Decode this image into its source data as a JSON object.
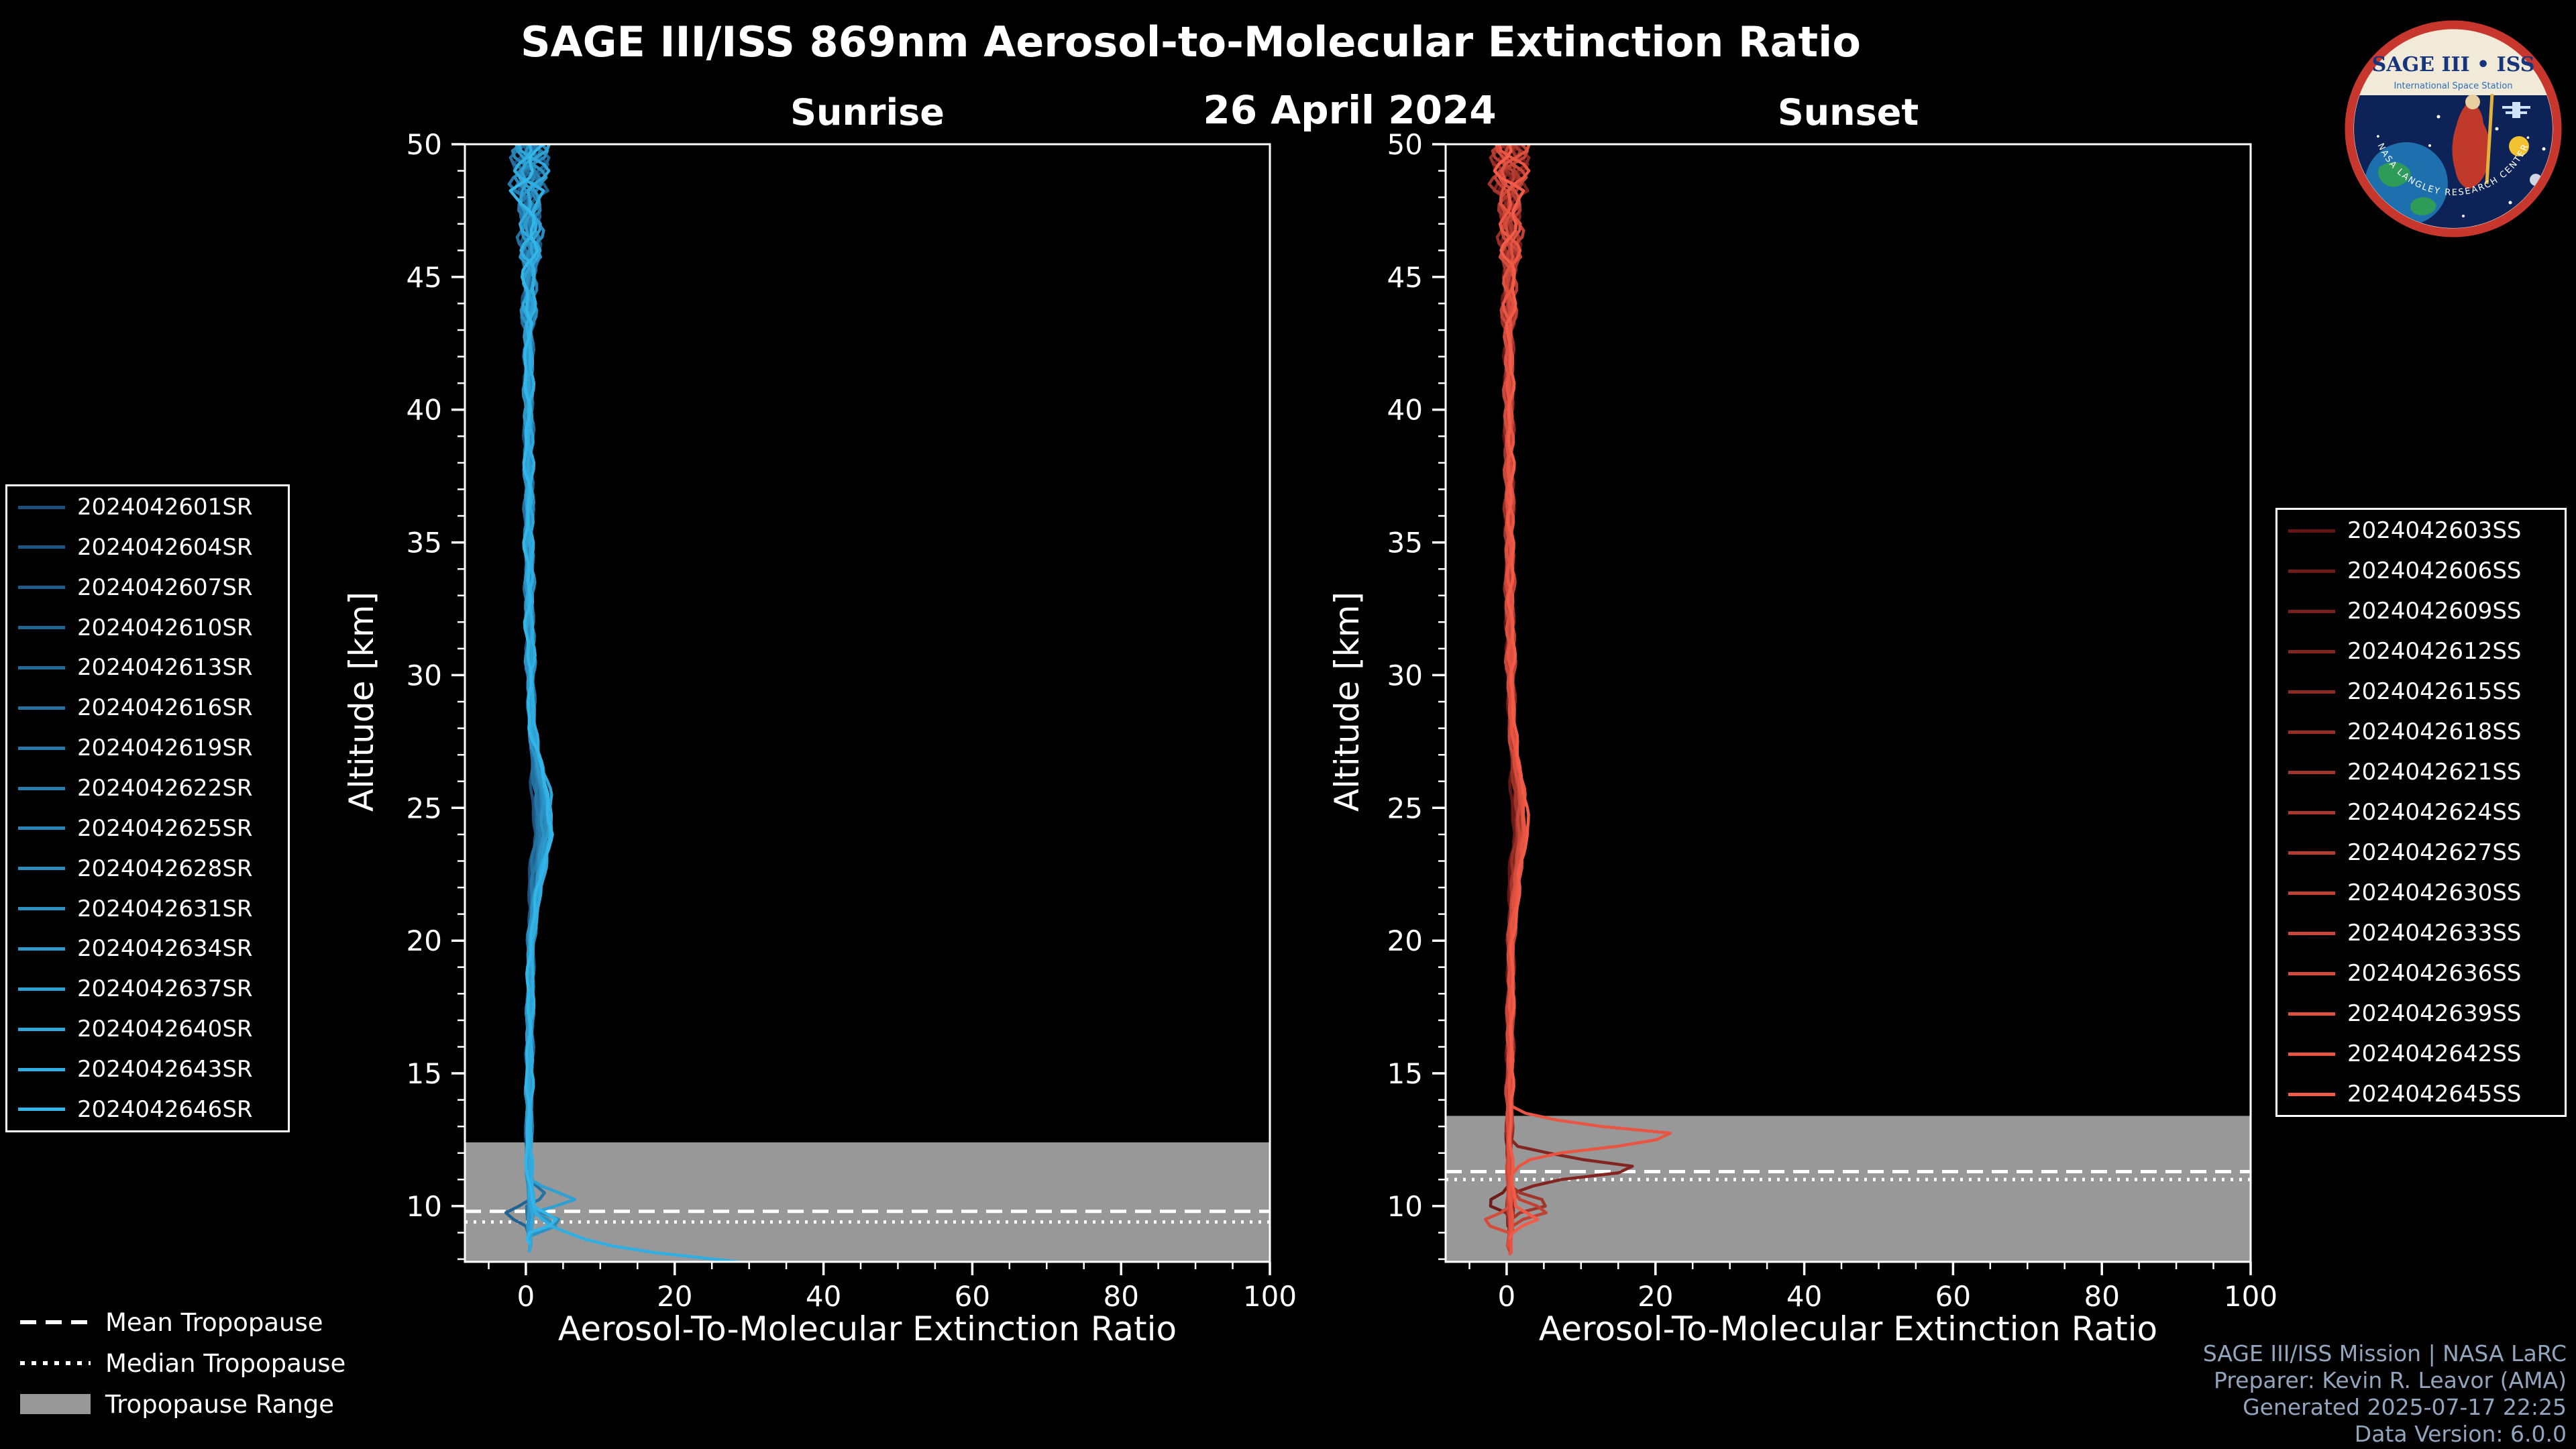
{
  "title": "SAGE III/ISS 869nm Aerosol-to-Molecular Extinction Ratio",
  "date": "26 April 2024",
  "logo": {
    "title": "SAGE III • ISS",
    "subtitle": "International Space Station",
    "arc_text": "• NASA LANGLEY RESEARCH CENTER •"
  },
  "colors": {
    "background": "#000000",
    "text": "#ffffff",
    "credits": "#93a5bd",
    "tropopause_band": "#989898",
    "tropopause_line": "#ffffff",
    "axes": "#ffffff"
  },
  "credits": [
    "SAGE III/ISS Mission | NASA LaRC",
    "Preparer: Kevin R. Leavor (AMA)",
    "Generated 2025-07-17 22:25",
    "Data Version: 6.0.0"
  ],
  "tropopause_legend": [
    {
      "style": "dashed",
      "label": "Mean Tropopause"
    },
    {
      "style": "dotted",
      "label": "Median Tropopause"
    },
    {
      "style": "patch",
      "label": "Tropopause Range"
    }
  ],
  "chart_data": [
    {
      "type": "line",
      "title": "Sunrise",
      "xlabel": "Aerosol-To-Molecular Extinction Ratio",
      "ylabel": "Altitude [km]",
      "xlim": [
        -8.2,
        100
      ],
      "ylim": [
        7.9,
        50
      ],
      "xticks": [
        0,
        20,
        40,
        60,
        80,
        100
      ],
      "yticks": [
        10,
        15,
        20,
        25,
        30,
        35,
        40,
        45,
        50
      ],
      "grid": false,
      "legend_position": "outside-left",
      "tropopause": {
        "mean_km": 9.8,
        "median_km": 9.4,
        "range_top_km": 12.4
      },
      "base_keypoints": [
        [
          50,
          0.6
        ],
        [
          48,
          0.4
        ],
        [
          46,
          0.7
        ],
        [
          44,
          0.4
        ],
        [
          40,
          0.35
        ],
        [
          36,
          0.4
        ],
        [
          32,
          0.5
        ],
        [
          28,
          0.8
        ],
        [
          25.5,
          1.7
        ],
        [
          24,
          1.9
        ],
        [
          22.5,
          1.2
        ],
        [
          20,
          0.7
        ],
        [
          17,
          0.55
        ],
        [
          14,
          0.45
        ],
        [
          12.5,
          0.4
        ],
        [
          11,
          0.5
        ],
        [
          10,
          0.6
        ],
        [
          9,
          0.5
        ],
        [
          8,
          0.45
        ]
      ],
      "series": [
        {
          "name": "2024042601SR",
          "color": "#1c4f7c",
          "end_km": 9.4,
          "bulge": 0.7
        },
        {
          "name": "2024042604SR",
          "color": "#1e5683",
          "end_km": 9.0,
          "bulge": 0.8
        },
        {
          "name": "2024042607SR",
          "color": "#1f5c8a",
          "end_km": 9.6,
          "bulge": 0.9
        },
        {
          "name": "2024042610SR",
          "color": "#216391",
          "end_km": 8.6,
          "bulge": 0.8,
          "extra": [
            [
              10.2,
              0.4
            ],
            [
              9.7,
              -3.2
            ],
            [
              9.2,
              0.3
            ]
          ]
        },
        {
          "name": "2024042613SR",
          "color": "#226a99",
          "end_km": 9.2,
          "bulge": 1.0
        },
        {
          "name": "2024042616SR",
          "color": "#2471a0",
          "end_km": 8.9,
          "bulge": 0.9,
          "extra": [
            [
              11.0,
              0.5
            ],
            [
              10.4,
              3.2
            ],
            [
              10.0,
              0.6
            ]
          ]
        },
        {
          "name": "2024042619SR",
          "color": "#2578a7",
          "end_km": 9.5,
          "bulge": 1.0
        },
        {
          "name": "2024042622SR",
          "color": "#277eae",
          "end_km": 8.7,
          "bulge": 1.1
        },
        {
          "name": "2024042625SR",
          "color": "#2885b6",
          "end_km": 9.1,
          "bulge": 1.2,
          "extra": [
            [
              9.9,
              0.6
            ],
            [
              9.4,
              5.2
            ],
            [
              9.0,
              1.2
            ]
          ]
        },
        {
          "name": "2024042628SR",
          "color": "#2a8cbd",
          "end_km": 8.5,
          "bulge": 1.3
        },
        {
          "name": "2024042631SR",
          "color": "#2b93c4",
          "end_km": 9.3,
          "bulge": 1.4,
          "extra": [
            [
              9.8,
              0.8
            ],
            [
              9.3,
              4.4
            ],
            [
              8.9,
              0.9
            ]
          ]
        },
        {
          "name": "2024042634SR",
          "color": "#2d9acb",
          "end_km": 8.4,
          "bulge": 1.6
        },
        {
          "name": "2024042637SR",
          "color": "#2ea1d2",
          "end_km": 9.0,
          "bulge": 1.7,
          "extra": [
            [
              10.9,
              0.7
            ],
            [
              10.2,
              6.8
            ],
            [
              9.8,
              1.0
            ]
          ]
        },
        {
          "name": "2024042640SR",
          "color": "#30a7da",
          "end_km": 8.3,
          "bulge": 1.8
        },
        {
          "name": "2024042643SR",
          "color": "#31aee1",
          "end_km": 7.9,
          "bulge": 1.6,
          "extra": [
            [
              9.8,
              1.0
            ],
            [
              9.2,
              3.5
            ],
            [
              8.6,
              9.0
            ],
            [
              8.2,
              18.0
            ],
            [
              7.9,
              28.5
            ]
          ]
        },
        {
          "name": "2024042646SR",
          "color": "#33b5e8",
          "end_km": 8.6,
          "bulge": 1.9,
          "extra": [
            [
              10.0,
              1.2
            ],
            [
              9.4,
              4.8
            ],
            [
              9.0,
              0.8
            ]
          ]
        }
      ]
    },
    {
      "type": "line",
      "title": "Sunset",
      "xlabel": "Aerosol-To-Molecular Extinction Ratio",
      "ylabel": "Altitude [km]",
      "xlim": [
        -8.2,
        100
      ],
      "ylim": [
        7.9,
        50
      ],
      "xticks": [
        0,
        20,
        40,
        60,
        80,
        100
      ],
      "yticks": [
        10,
        15,
        20,
        25,
        30,
        35,
        40,
        45,
        50
      ],
      "grid": false,
      "legend_position": "outside-right",
      "tropopause": {
        "mean_km": 11.3,
        "median_km": 11.0,
        "range_top_km": 13.4
      },
      "base_keypoints": [
        [
          50,
          0.5
        ],
        [
          48,
          0.3
        ],
        [
          46,
          0.6
        ],
        [
          44,
          0.3
        ],
        [
          40,
          0.3
        ],
        [
          36,
          0.35
        ],
        [
          32,
          0.45
        ],
        [
          28,
          0.7
        ],
        [
          25.5,
          1.4
        ],
        [
          24,
          1.6
        ],
        [
          22.5,
          1.0
        ],
        [
          20,
          0.6
        ],
        [
          17,
          0.5
        ],
        [
          14,
          0.4
        ],
        [
          12.5,
          0.35
        ],
        [
          11,
          0.45
        ],
        [
          10,
          0.5
        ],
        [
          9,
          0.45
        ],
        [
          8,
          0.4
        ]
      ],
      "series": [
        {
          "name": "2024042603SS",
          "color": "#641616",
          "end_km": 9.2,
          "bulge": 0.7
        },
        {
          "name": "2024042606SS",
          "color": "#6e1b19",
          "end_km": 8.8,
          "bulge": 0.8,
          "extra": [
            [
              10.6,
              0.4
            ],
            [
              10.1,
              -3.0
            ],
            [
              9.7,
              0.2
            ]
          ]
        },
        {
          "name": "2024042609SS",
          "color": "#78201d",
          "end_km": 9.4,
          "bulge": 0.9
        },
        {
          "name": "2024042612SS",
          "color": "#822520",
          "end_km": 8.6,
          "bulge": 0.9,
          "extra": [
            [
              12.3,
              0.6
            ],
            [
              11.8,
              9.0
            ],
            [
              11.4,
              19.5
            ],
            [
              11.0,
              7.0
            ],
            [
              10.6,
              0.8
            ]
          ]
        },
        {
          "name": "2024042615SS",
          "color": "#8d2a24",
          "end_km": 9.0,
          "bulge": 1.0
        },
        {
          "name": "2024042618SS",
          "color": "#972f27",
          "end_km": 8.5,
          "bulge": 1.0
        },
        {
          "name": "2024042621SS",
          "color": "#a1342b",
          "end_km": 9.3,
          "bulge": 1.1,
          "extra": [
            [
              10.6,
              0.7
            ],
            [
              10.1,
              6.5
            ],
            [
              9.7,
              1.1
            ]
          ]
        },
        {
          "name": "2024042624SS",
          "color": "#ab382e",
          "end_km": 8.4,
          "bulge": 1.1
        },
        {
          "name": "2024042627SS",
          "color": "#b53d32",
          "end_km": 9.1,
          "bulge": 1.2
        },
        {
          "name": "2024042630SS",
          "color": "#bf4235",
          "end_km": 8.7,
          "bulge": 1.2,
          "extra": [
            [
              10.3,
              0.8
            ],
            [
              9.8,
              5.6
            ],
            [
              9.4,
              0.9
            ]
          ]
        },
        {
          "name": "2024042633SS",
          "color": "#c94739",
          "end_km": 8.3,
          "bulge": 1.3
        },
        {
          "name": "2024042636SS",
          "color": "#d44c3c",
          "end_km": 9.0,
          "bulge": 1.4,
          "extra": [
            [
              9.9,
              0.6
            ],
            [
              9.4,
              -3.4
            ],
            [
              9.0,
              0.5
            ]
          ]
        },
        {
          "name": "2024042639SS",
          "color": "#de5140",
          "end_km": 8.5,
          "bulge": 1.5
        },
        {
          "name": "2024042642SS",
          "color": "#e85643",
          "end_km": 8.2,
          "bulge": 1.5,
          "extra": [
            [
              13.6,
              0.9
            ],
            [
              13.1,
              9.0
            ],
            [
              12.7,
              23.5
            ],
            [
              12.3,
              16.0
            ],
            [
              11.9,
              4.0
            ],
            [
              11.4,
              1.0
            ]
          ]
        },
        {
          "name": "2024042645SS",
          "color": "#f25b47",
          "end_km": 8.8,
          "bulge": 1.6,
          "extra": [
            [
              10.0,
              1.0
            ],
            [
              9.5,
              4.2
            ],
            [
              9.1,
              0.7
            ]
          ]
        }
      ]
    }
  ]
}
